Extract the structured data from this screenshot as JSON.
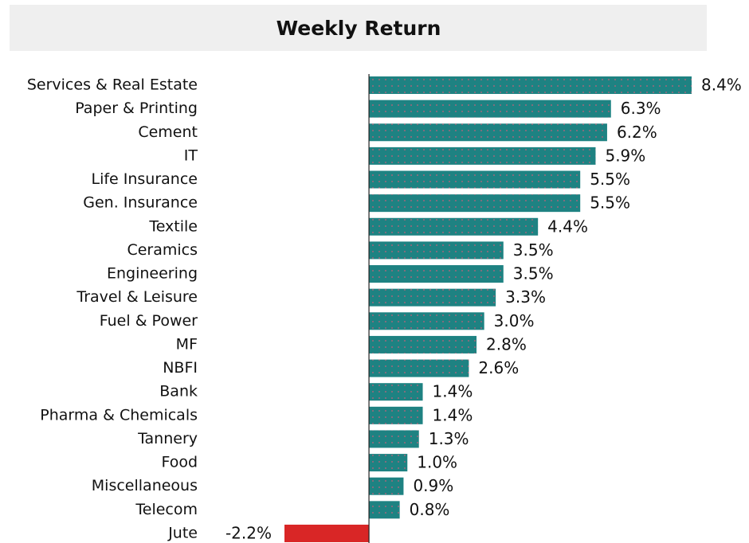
{
  "chart_data": {
    "type": "bar",
    "orientation": "horizontal",
    "title": "Weekly Return",
    "categories": [
      "Services & Real Estate",
      "Paper & Printing",
      "Cement",
      "IT",
      "Life Insurance",
      "Gen. Insurance",
      "Textile",
      "Ceramics",
      "Engineering",
      "Travel & Leisure",
      "Fuel & Power",
      "MF",
      "NBFI",
      "Bank",
      "Pharma & Chemicals",
      "Tannery",
      "Food",
      "Miscellaneous",
      "Telecom",
      "Jute"
    ],
    "values": [
      8.4,
      6.3,
      6.2,
      5.9,
      5.5,
      5.5,
      4.4,
      3.5,
      3.5,
      3.3,
      3.0,
      2.8,
      2.6,
      1.4,
      1.4,
      1.3,
      1.0,
      0.9,
      0.8,
      -2.2
    ],
    "value_labels": [
      "8.4%",
      "6.3%",
      "6.2%",
      "5.9%",
      "5.5%",
      "5.5%",
      "4.4%",
      "3.5%",
      "3.5%",
      "3.3%",
      "3.0%",
      "2.8%",
      "2.6%",
      "1.4%",
      "1.4%",
      "1.3%",
      "1.0%",
      "0.9%",
      "0.8%",
      "-2.2%"
    ],
    "color": "#1e8282",
    "negative_color": "#d92626"
  }
}
